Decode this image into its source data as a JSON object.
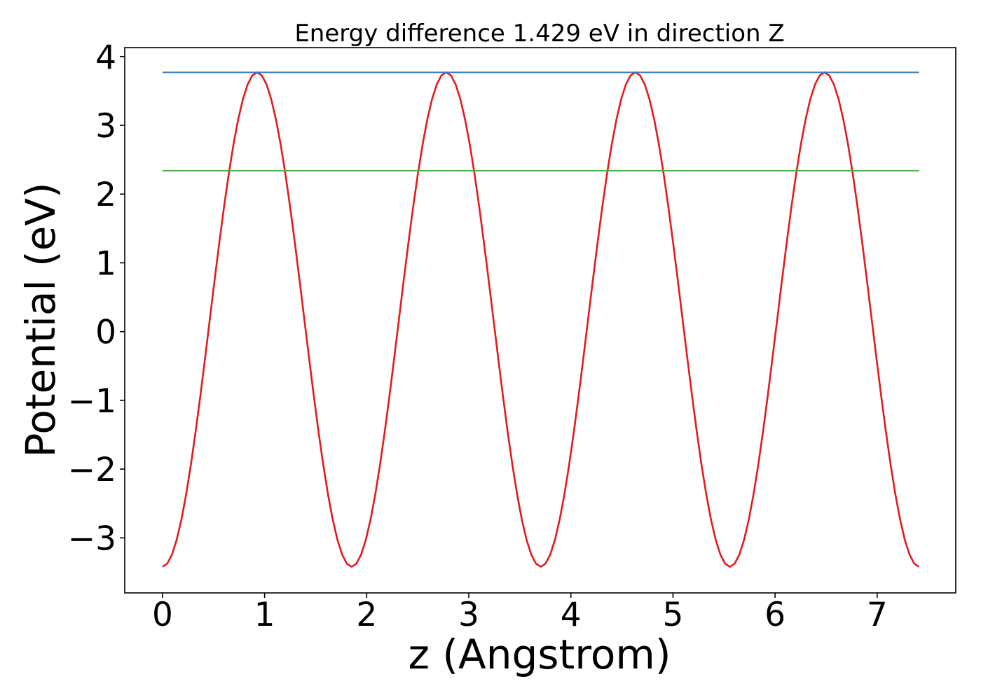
{
  "chart_data": {
    "type": "line",
    "title": "Energy difference 1.429 eV in direction Z",
    "xlabel": "z (Angstrom)",
    "ylabel": "Potential (eV)",
    "xlim": [
      -0.37,
      7.77
    ],
    "ylim": [
      -3.8,
      4.13
    ],
    "xticks": [
      0,
      1,
      2,
      3,
      4,
      5,
      6,
      7
    ],
    "xtick_labels": [
      "0",
      "1",
      "2",
      "3",
      "4",
      "5",
      "6",
      "7"
    ],
    "yticks": [
      -3,
      -2,
      -1,
      0,
      1,
      2,
      3,
      4
    ],
    "ytick_labels": [
      "−3",
      "−2",
      "−1",
      "0",
      "1",
      "2",
      "3",
      "4"
    ],
    "grid": false,
    "series": [
      {
        "kind": "curve",
        "color": "#e41a1c",
        "x_range": [
          0,
          7.41
        ],
        "minimum": -3.42,
        "maximum": 3.77,
        "maxima_at": [
          0.93,
          2.78,
          4.64,
          6.49
        ],
        "minima_at": [
          0.0,
          1.85,
          3.71,
          5.56,
          7.41
        ]
      },
      {
        "kind": "hline",
        "color": "#377eb8",
        "y": 3.77,
        "x_range": [
          0,
          7.41
        ]
      },
      {
        "kind": "hline",
        "color": "#4daf4a",
        "y": 2.34,
        "x_range": [
          0,
          7.41
        ]
      }
    ]
  }
}
